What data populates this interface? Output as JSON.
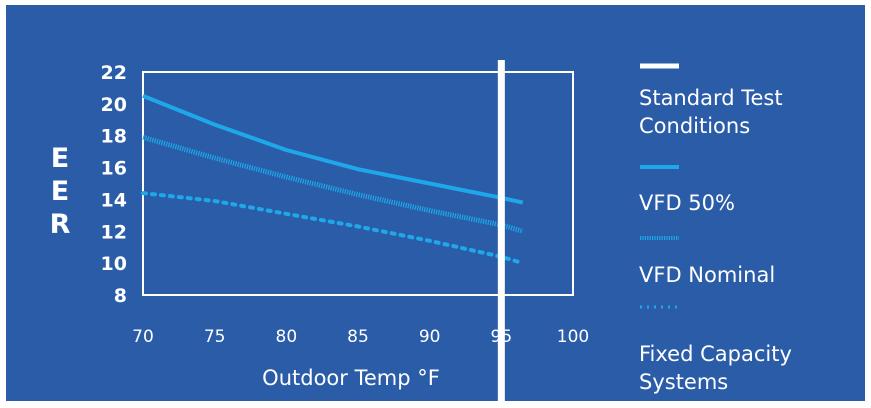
{
  "chart_data": {
    "type": "line",
    "title": "",
    "xlabel": "Outdoor Temp °F",
    "ylabel": "EER",
    "xlim": [
      70,
      100
    ],
    "ylim": [
      8,
      22
    ],
    "xticks": [
      70,
      75,
      80,
      85,
      90,
      95,
      100
    ],
    "yticks": [
      8,
      10,
      12,
      14,
      16,
      18,
      20,
      22
    ],
    "grid": false,
    "legend_position": "right",
    "reference_lines": [
      {
        "name": "Standard Test Conditions",
        "x": 95,
        "color": "#ffffff",
        "style": "solid-thick"
      }
    ],
    "series": [
      {
        "name": "VFD 50%",
        "color": "#1ea8ea",
        "style": "solid",
        "x": [
          70,
          75,
          80,
          85,
          90,
          95,
          96.5
        ],
        "y": [
          20.5,
          18.7,
          17.1,
          15.9,
          15.0,
          14.1,
          13.8
        ]
      },
      {
        "name": "VFD Nominal",
        "color": "#1ea8ea",
        "style": "striped",
        "x": [
          70,
          75,
          80,
          85,
          90,
          95,
          96.5
        ],
        "y": [
          17.9,
          16.6,
          15.4,
          14.3,
          13.3,
          12.4,
          12.0
        ]
      },
      {
        "name": "Fixed Capacity Systems",
        "color": "#1ea8ea",
        "style": "dotted",
        "x": [
          70,
          75,
          80,
          85,
          90,
          95,
          96.5
        ],
        "y": [
          14.4,
          13.9,
          13.1,
          12.3,
          11.4,
          10.4,
          10.0
        ]
      }
    ]
  }
}
